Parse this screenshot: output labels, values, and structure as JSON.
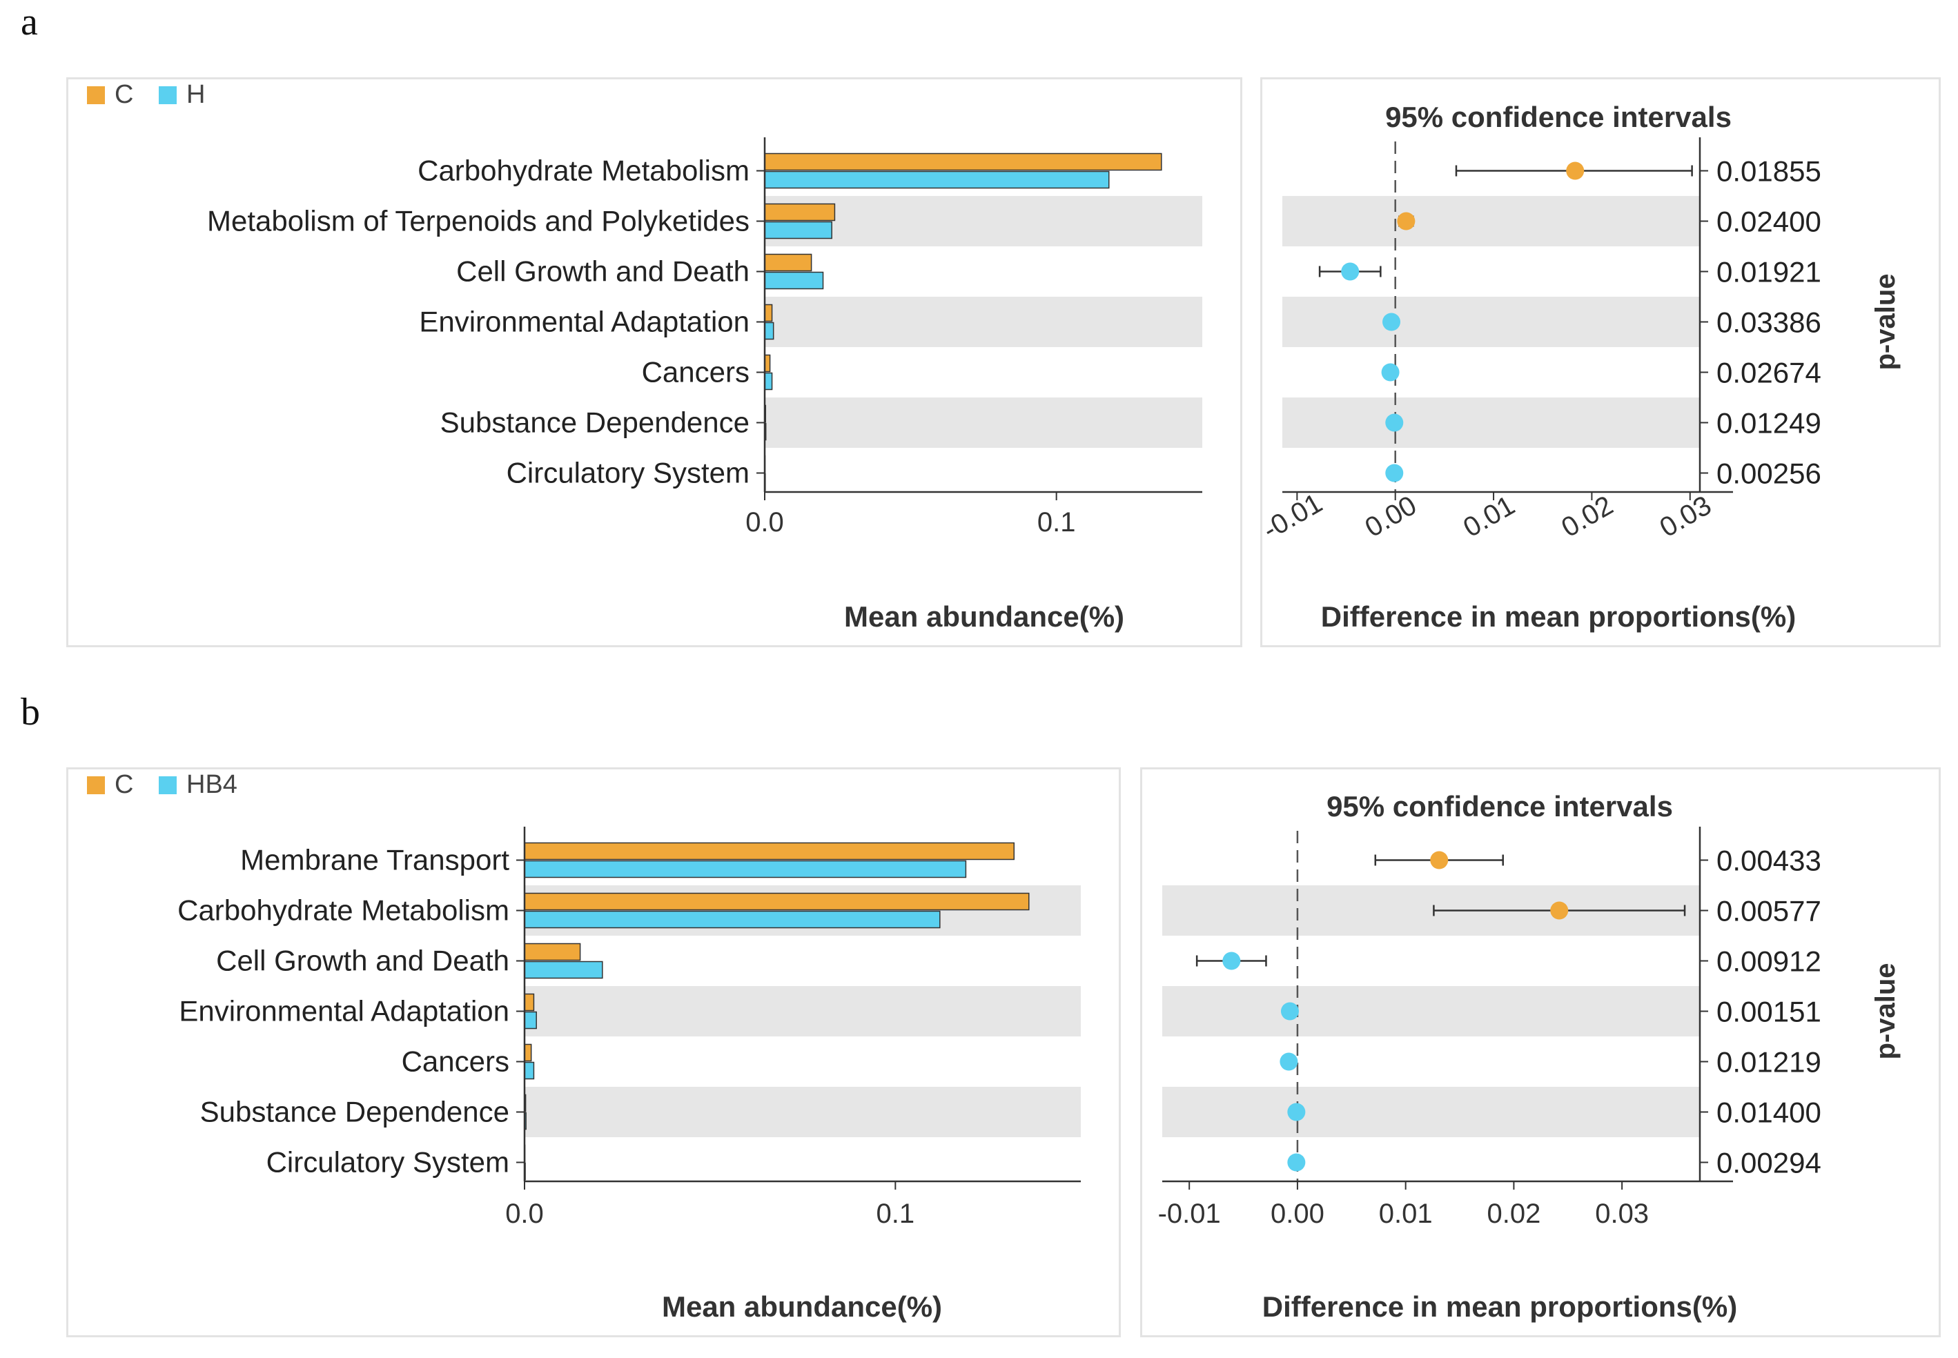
{
  "panels": [
    {
      "label": "a",
      "legend": [
        {
          "name": "C",
          "color": "#f0a83a"
        },
        {
          "name": "H",
          "color": "#5ad0f0"
        }
      ],
      "abundance_xlabel": "Mean abundance(%)",
      "ci_title": "95% confidence intervals",
      "ci_xlabel": "Difference in mean proportions(%)",
      "pvalue_label": "p-value"
    },
    {
      "label": "b",
      "legend": [
        {
          "name": "C",
          "color": "#f0a83a"
        },
        {
          "name": "HB4",
          "color": "#5ad0f0"
        }
      ],
      "abundance_xlabel": "Mean abundance(%)",
      "ci_title": "95% confidence intervals",
      "ci_xlabel": "Difference in mean proportions(%)",
      "pvalue_label": "p-value"
    }
  ],
  "chart_data": [
    {
      "type": "bar",
      "orientation": "horizontal",
      "panel": "a",
      "categories": [
        "Carbohydrate Metabolism",
        "Metabolism of Terpenoids and Polyketides",
        "Cell Growth and Death",
        "Environmental Adaptation",
        "Cancers",
        "Substance Dependence",
        "Circulatory System"
      ],
      "series": [
        {
          "name": "C",
          "color": "#f0a83a",
          "values": [
            0.136,
            0.024,
            0.016,
            0.0025,
            0.0018,
            0.0003,
            0.0001
          ]
        },
        {
          "name": "H",
          "color": "#5ad0f0",
          "values": [
            0.118,
            0.023,
            0.02,
            0.003,
            0.0025,
            0.0004,
            0.0002
          ]
        }
      ],
      "xlabel": "Mean abundance(%)",
      "xlim": [
        0,
        0.15
      ],
      "xticks": [
        0.0,
        0.1
      ],
      "xtick_labels": [
        "0.0",
        "0.1"
      ],
      "ci": {
        "title": "95% confidence intervals",
        "xlabel": "Difference in mean proportions(%)",
        "xlim": [
          -0.0115,
          0.031
        ],
        "xticks": [
          -0.01,
          0.0,
          0.01,
          0.02,
          0.03
        ],
        "xtick_labels": [
          "-0.01",
          "0.00",
          "0.01",
          "0.02",
          "0.03"
        ],
        "tick_rotation": -30,
        "points": [
          {
            "value": 0.0183,
            "low": 0.0062,
            "high": 0.0302,
            "color": "#f0a83a"
          },
          {
            "value": 0.0011,
            "low": 0.0004,
            "high": 0.0018,
            "color": "#f0a83a"
          },
          {
            "value": -0.0046,
            "low": -0.0077,
            "high": -0.0015,
            "color": "#5ad0f0"
          },
          {
            "value": -0.0004,
            "low": -0.0008,
            "high": 0.0,
            "color": "#5ad0f0"
          },
          {
            "value": -0.0005,
            "low": -0.0009,
            "high": -0.0001,
            "color": "#5ad0f0"
          },
          {
            "value": -0.0001,
            "low": -0.0003,
            "high": 0.0001,
            "color": "#5ad0f0"
          },
          {
            "value": -0.0001,
            "low": -0.0002,
            "high": 0.0,
            "color": "#5ad0f0"
          }
        ],
        "pvalues": [
          "0.01855",
          "0.02400",
          "0.01921",
          "0.03386",
          "0.02674",
          "0.01249",
          "0.00256"
        ]
      }
    },
    {
      "type": "bar",
      "orientation": "horizontal",
      "panel": "b",
      "categories": [
        "Membrane Transport",
        "Carbohydrate Metabolism",
        "Cell Growth and Death",
        "Environmental Adaptation",
        "Cancers",
        "Substance Dependence",
        "Circulatory System"
      ],
      "series": [
        {
          "name": "C",
          "color": "#f0a83a",
          "values": [
            0.132,
            0.136,
            0.015,
            0.0025,
            0.0018,
            0.0003,
            0.0001
          ]
        },
        {
          "name": "HB4",
          "color": "#5ad0f0",
          "values": [
            0.119,
            0.112,
            0.021,
            0.0032,
            0.0025,
            0.0004,
            0.0002
          ]
        }
      ],
      "xlabel": "Mean abundance(%)",
      "xlim": [
        0,
        0.15
      ],
      "xticks": [
        0.0,
        0.1
      ],
      "xtick_labels": [
        "0.0",
        "0.1"
      ],
      "ci": {
        "title": "95% confidence intervals",
        "xlabel": "Difference in mean proportions(%)",
        "xlim": [
          -0.0125,
          0.0372
        ],
        "xticks": [
          -0.01,
          0.0,
          0.01,
          0.02,
          0.03
        ],
        "xtick_labels": [
          "-0.01",
          "0.00",
          "0.01",
          "0.02",
          "0.03"
        ],
        "tick_rotation": 0,
        "points": [
          {
            "value": 0.0131,
            "low": 0.0072,
            "high": 0.019,
            "color": "#f0a83a"
          },
          {
            "value": 0.0242,
            "low": 0.0126,
            "high": 0.0358,
            "color": "#f0a83a"
          },
          {
            "value": -0.0061,
            "low": -0.0093,
            "high": -0.0029,
            "color": "#5ad0f0"
          },
          {
            "value": -0.0007,
            "low": -0.001,
            "high": -0.0004,
            "color": "#5ad0f0"
          },
          {
            "value": -0.0008,
            "low": -0.0011,
            "high": -0.0005,
            "color": "#5ad0f0"
          },
          {
            "value": -0.0001,
            "low": -0.0003,
            "high": 0.0001,
            "color": "#5ad0f0"
          },
          {
            "value": -0.0001,
            "low": -0.0002,
            "high": 0.0,
            "color": "#5ad0f0"
          }
        ],
        "pvalues": [
          "0.00433",
          "0.00577",
          "0.00912",
          "0.00151",
          "0.01219",
          "0.01400",
          "0.00294"
        ]
      }
    }
  ]
}
